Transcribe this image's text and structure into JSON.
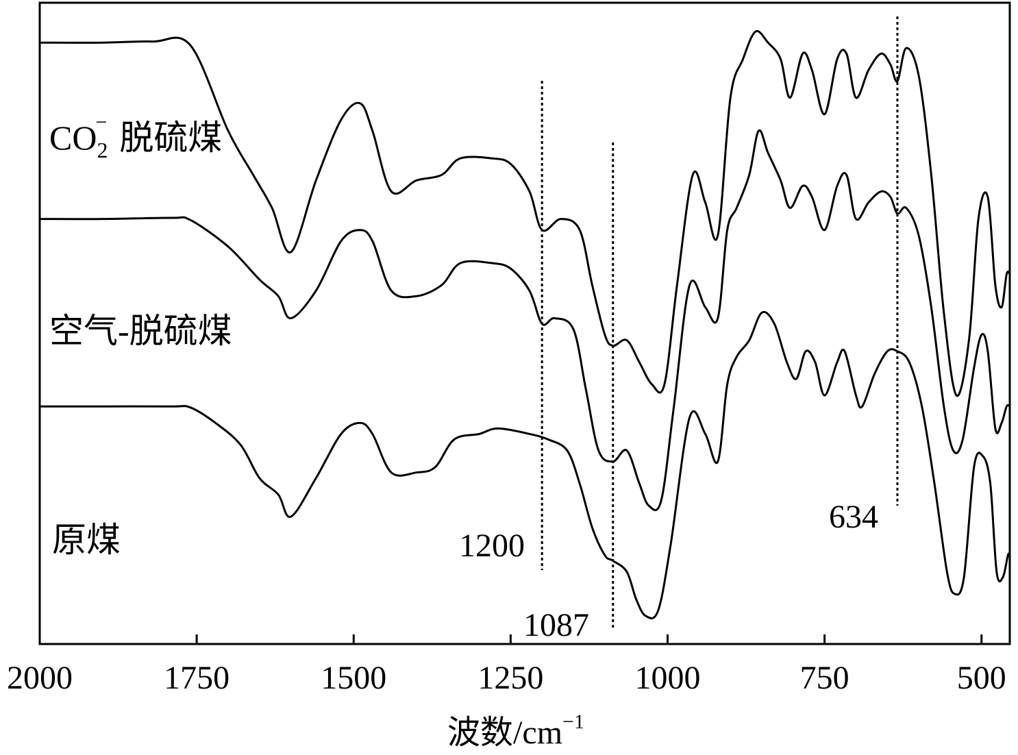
{
  "chart_data": {
    "type": "line",
    "title": "",
    "xlabel": "波数/cm",
    "xlabel_superscript": "−1",
    "ylabel": "",
    "xlim": [
      2000,
      455
    ],
    "x_reversed": true,
    "xticks": [
      2000,
      1750,
      1500,
      1250,
      1000,
      750,
      500
    ],
    "xtick_labels": [
      "2000",
      "1750",
      "1500",
      "1250",
      "1000",
      "750",
      "500"
    ],
    "y_axis_visible": false,
    "grid": false,
    "legend": "none",
    "series": [
      {
        "name": "CO₂⁻脱硫煤",
        "label_main": "CO",
        "label_sub": "2",
        "label_sup": "−",
        "label_suffix": "脱硫煤",
        "points": [
          [
            2000,
            0.96
          ],
          [
            1900,
            0.96
          ],
          [
            1820,
            0.962
          ],
          [
            1760,
            0.955
          ],
          [
            1700,
            0.8
          ],
          [
            1660,
            0.72
          ],
          [
            1630,
            0.66
          ],
          [
            1600,
            0.58
          ],
          [
            1560,
            0.71
          ],
          [
            1520,
            0.82
          ],
          [
            1490,
            0.85
          ],
          [
            1470,
            0.8
          ],
          [
            1440,
            0.69
          ],
          [
            1400,
            0.71
          ],
          [
            1360,
            0.72
          ],
          [
            1330,
            0.75
          ],
          [
            1280,
            0.75
          ],
          [
            1250,
            0.74
          ],
          [
            1220,
            0.69
          ],
          [
            1200,
            0.62
          ],
          [
            1170,
            0.64
          ],
          [
            1140,
            0.62
          ],
          [
            1120,
            0.52
          ],
          [
            1100,
            0.43
          ],
          [
            1087,
            0.41
          ],
          [
            1065,
            0.42
          ],
          [
            1045,
            0.38
          ],
          [
            1025,
            0.34
          ],
          [
            1005,
            0.34
          ],
          [
            985,
            0.52
          ],
          [
            960,
            0.72
          ],
          [
            940,
            0.67
          ],
          [
            920,
            0.61
          ],
          [
            900,
            0.86
          ],
          [
            880,
            0.93
          ],
          [
            860,
            0.98
          ],
          [
            840,
            0.96
          ],
          [
            820,
            0.93
          ],
          [
            805,
            0.86
          ],
          [
            785,
            0.94
          ],
          [
            770,
            0.91
          ],
          [
            750,
            0.83
          ],
          [
            730,
            0.93
          ],
          [
            715,
            0.94
          ],
          [
            700,
            0.86
          ],
          [
            680,
            0.91
          ],
          [
            660,
            0.94
          ],
          [
            645,
            0.92
          ],
          [
            634,
            0.89
          ],
          [
            620,
            0.95
          ],
          [
            600,
            0.9
          ],
          [
            580,
            0.72
          ],
          [
            560,
            0.47
          ],
          [
            540,
            0.32
          ],
          [
            520,
            0.42
          ],
          [
            505,
            0.64
          ],
          [
            490,
            0.68
          ],
          [
            478,
            0.52
          ],
          [
            468,
            0.48
          ],
          [
            460,
            0.54
          ],
          [
            455,
            0.54
          ]
        ]
      },
      {
        "name": "空气-脱硫煤",
        "label_main": "空气-脱硫煤",
        "points": [
          [
            2000,
            0.64
          ],
          [
            1900,
            0.64
          ],
          [
            1790,
            0.642
          ],
          [
            1760,
            0.638
          ],
          [
            1700,
            0.59
          ],
          [
            1650,
            0.53
          ],
          [
            1620,
            0.5
          ],
          [
            1600,
            0.46
          ],
          [
            1560,
            0.51
          ],
          [
            1520,
            0.6
          ],
          [
            1490,
            0.62
          ],
          [
            1470,
            0.6
          ],
          [
            1440,
            0.51
          ],
          [
            1400,
            0.5
          ],
          [
            1360,
            0.52
          ],
          [
            1330,
            0.56
          ],
          [
            1280,
            0.56
          ],
          [
            1250,
            0.55
          ],
          [
            1220,
            0.51
          ],
          [
            1200,
            0.45
          ],
          [
            1180,
            0.46
          ],
          [
            1150,
            0.44
          ],
          [
            1130,
            0.33
          ],
          [
            1110,
            0.22
          ],
          [
            1087,
            0.2
          ],
          [
            1065,
            0.22
          ],
          [
            1045,
            0.16
          ],
          [
            1030,
            0.12
          ],
          [
            1010,
            0.13
          ],
          [
            990,
            0.3
          ],
          [
            965,
            0.52
          ],
          [
            940,
            0.48
          ],
          [
            920,
            0.46
          ],
          [
            905,
            0.62
          ],
          [
            890,
            0.66
          ],
          [
            870,
            0.72
          ],
          [
            855,
            0.8
          ],
          [
            840,
            0.76
          ],
          [
            820,
            0.71
          ],
          [
            805,
            0.66
          ],
          [
            785,
            0.7
          ],
          [
            770,
            0.68
          ],
          [
            750,
            0.62
          ],
          [
            730,
            0.7
          ],
          [
            715,
            0.72
          ],
          [
            700,
            0.64
          ],
          [
            680,
            0.67
          ],
          [
            660,
            0.69
          ],
          [
            645,
            0.68
          ],
          [
            634,
            0.65
          ],
          [
            620,
            0.66
          ],
          [
            600,
            0.61
          ],
          [
            580,
            0.48
          ],
          [
            560,
            0.3
          ],
          [
            545,
            0.22
          ],
          [
            530,
            0.24
          ],
          [
            512,
            0.37
          ],
          [
            500,
            0.43
          ],
          [
            490,
            0.4
          ],
          [
            478,
            0.26
          ],
          [
            468,
            0.27
          ],
          [
            460,
            0.3
          ],
          [
            455,
            0.3
          ]
        ]
      },
      {
        "name": "原煤",
        "label_main": "原煤",
        "points": [
          [
            2000,
            0.3
          ],
          [
            1900,
            0.3
          ],
          [
            1790,
            0.3
          ],
          [
            1760,
            0.298
          ],
          [
            1720,
            0.27
          ],
          [
            1680,
            0.23
          ],
          [
            1650,
            0.17
          ],
          [
            1620,
            0.14
          ],
          [
            1600,
            0.1
          ],
          [
            1560,
            0.17
          ],
          [
            1520,
            0.25
          ],
          [
            1490,
            0.27
          ],
          [
            1470,
            0.25
          ],
          [
            1440,
            0.18
          ],
          [
            1400,
            0.18
          ],
          [
            1370,
            0.19
          ],
          [
            1340,
            0.24
          ],
          [
            1300,
            0.25
          ],
          [
            1270,
            0.26
          ],
          [
            1220,
            0.25
          ],
          [
            1190,
            0.24
          ],
          [
            1160,
            0.22
          ],
          [
            1140,
            0.16
          ],
          [
            1120,
            0.08
          ],
          [
            1100,
            0.03
          ],
          [
            1087,
            0.02
          ],
          [
            1065,
            0.0
          ],
          [
            1050,
            -0.05
          ],
          [
            1035,
            -0.08
          ],
          [
            1015,
            -0.07
          ],
          [
            995,
            0.05
          ],
          [
            965,
            0.28
          ],
          [
            940,
            0.25
          ],
          [
            920,
            0.2
          ],
          [
            905,
            0.34
          ],
          [
            890,
            0.39
          ],
          [
            870,
            0.42
          ],
          [
            850,
            0.47
          ],
          [
            830,
            0.45
          ],
          [
            810,
            0.38
          ],
          [
            795,
            0.35
          ],
          [
            780,
            0.4
          ],
          [
            765,
            0.38
          ],
          [
            750,
            0.32
          ],
          [
            730,
            0.38
          ],
          [
            718,
            0.4
          ],
          [
            700,
            0.32
          ],
          [
            690,
            0.3
          ],
          [
            670,
            0.36
          ],
          [
            650,
            0.4
          ],
          [
            634,
            0.4
          ],
          [
            615,
            0.38
          ],
          [
            595,
            0.3
          ],
          [
            575,
            0.16
          ],
          [
            555,
            0.0
          ],
          [
            543,
            -0.04
          ],
          [
            528,
            -0.01
          ],
          [
            512,
            0.19
          ],
          [
            498,
            0.21
          ],
          [
            486,
            0.16
          ],
          [
            476,
            0.0
          ],
          [
            466,
            -0.01
          ],
          [
            458,
            0.03
          ],
          [
            455,
            0.03
          ]
        ]
      }
    ],
    "reference_lines": [
      {
        "x": 1200,
        "label": "1200"
      },
      {
        "x": 1087,
        "label": "1087"
      },
      {
        "x": 634,
        "label": "634"
      }
    ]
  }
}
